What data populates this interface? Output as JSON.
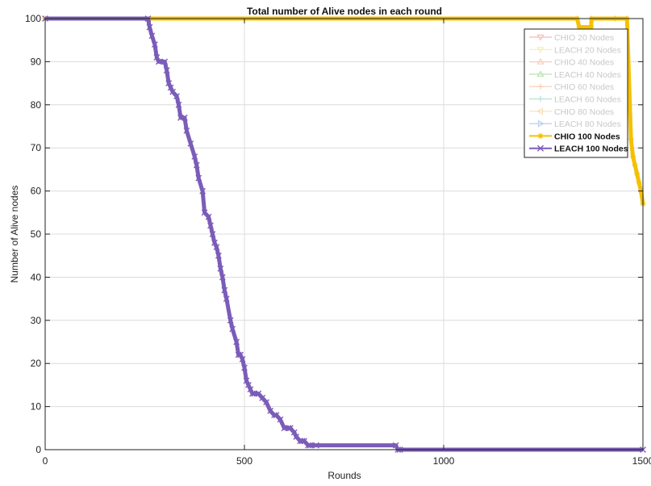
{
  "chart_data": {
    "type": "line",
    "title": "Total number of Alive nodes in each round",
    "xlabel": "Rounds",
    "ylabel": "Number of Alive nodes",
    "xlim": [
      0,
      1500
    ],
    "ylim": [
      0,
      100
    ],
    "xticks": [
      0,
      500,
      1000,
      1500
    ],
    "xtick_labels": [
      "0",
      "500",
      "1000",
      "1500"
    ],
    "yticks": [
      0,
      10,
      20,
      30,
      40,
      50,
      60,
      70,
      80,
      90,
      100
    ],
    "ytick_labels": [
      "0",
      "10",
      "20",
      "30",
      "40",
      "50",
      "60",
      "70",
      "80",
      "90",
      "100"
    ],
    "grid": true,
    "legend_position": "top-right",
    "legend": [
      {
        "label": "CHIO 20 Nodes",
        "color": "#f08080",
        "marker": "triangle-down",
        "faded": true
      },
      {
        "label": "LEACH 20 Nodes",
        "color": "#f2dc70",
        "marker": "triangle-down",
        "faded": true
      },
      {
        "label": "CHIO 40 Nodes",
        "color": "#f4a080",
        "marker": "triangle-up",
        "faded": true
      },
      {
        "label": "LEACH 40 Nodes",
        "color": "#8cc870",
        "marker": "triangle-up",
        "faded": true
      },
      {
        "label": "CHIO 60 Nodes",
        "color": "#f4a070",
        "marker": "plus",
        "faded": true
      },
      {
        "label": "LEACH 60 Nodes",
        "color": "#80c8b8",
        "marker": "plus",
        "faded": true
      },
      {
        "label": "CHIO 80 Nodes",
        "color": "#f6c080",
        "marker": "triangle-left",
        "faded": true
      },
      {
        "label": "LEACH 80 Nodes",
        "color": "#80a8e0",
        "marker": "triangle-right",
        "faded": true
      },
      {
        "label": "CHIO 100 Nodes",
        "color": "#f5c000",
        "marker": "star",
        "faded": false
      },
      {
        "label": "LEACH 100 Nodes",
        "color": "#7b5cb8",
        "marker": "x",
        "faded": false
      }
    ],
    "series": [
      {
        "name": "CHIO 100 Nodes",
        "color": "#f5c000",
        "marker": "star",
        "x": [
          0,
          1335,
          1340,
          1370,
          1371,
          1430,
          1460,
          1470,
          1475,
          1480,
          1485,
          1490,
          1495,
          1500
        ],
        "y": [
          100,
          100,
          98,
          98,
          100,
          100,
          100,
          72,
          68,
          66,
          64,
          62,
          60,
          57
        ]
      },
      {
        "name": "LEACH 100 Nodes",
        "color": "#7b5cb8",
        "marker": "x",
        "x": [
          0,
          258,
          262,
          268,
          275,
          280,
          285,
          300,
          305,
          310,
          315,
          320,
          330,
          335,
          340,
          350,
          355,
          365,
          375,
          380,
          385,
          395,
          400,
          410,
          415,
          420,
          425,
          430,
          435,
          440,
          445,
          450,
          455,
          465,
          470,
          480,
          485,
          490,
          495,
          500,
          505,
          510,
          515,
          520,
          525,
          535,
          545,
          555,
          565,
          575,
          580,
          590,
          600,
          610,
          615,
          625,
          630,
          640,
          645,
          650,
          660,
          665,
          680,
          880,
          885,
          890,
          1500
        ],
        "y": [
          100,
          100,
          98,
          96,
          94,
          91,
          90,
          90,
          88,
          85,
          84,
          83,
          82,
          80,
          77,
          77,
          74,
          71,
          68,
          66,
          63,
          60,
          55,
          54,
          52,
          50,
          48,
          47,
          45,
          42,
          40,
          37,
          35,
          30,
          28,
          25,
          22,
          22,
          21,
          19,
          16,
          15,
          14,
          13,
          13,
          13,
          12,
          11,
          9,
          8,
          8,
          7,
          5,
          5,
          5,
          4,
          3,
          2,
          2,
          2,
          1,
          1,
          1,
          1,
          0,
          0,
          0
        ]
      }
    ]
  }
}
